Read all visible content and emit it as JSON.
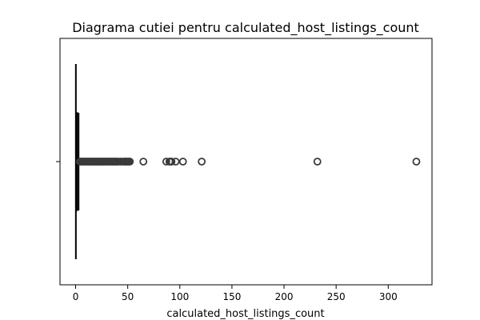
{
  "chart_data": {
    "type": "box",
    "title": "Diagrama cutiei pentru calculated_host_listings_count",
    "xlabel": "calculated_host_listings_count",
    "ylabel": "",
    "orientation": "horizontal",
    "xlim": [
      -15,
      342
    ],
    "xticks": [
      0,
      50,
      100,
      150,
      200,
      250,
      300
    ],
    "xtick_labels": [
      "0",
      "50",
      "100",
      "150",
      "200",
      "250",
      "300"
    ],
    "grid": false,
    "legend": "none",
    "box": {
      "min": 1,
      "q1": 1,
      "median": 1,
      "q3": 2,
      "whisker_high": 3
    },
    "outliers": [
      4,
      5,
      6,
      7,
      8,
      9,
      10,
      11,
      12,
      13,
      14,
      15,
      16,
      17,
      18,
      19,
      20,
      21,
      22,
      23,
      24,
      25,
      26,
      27,
      28,
      29,
      30,
      31,
      32,
      33,
      34,
      35,
      36,
      37,
      38,
      39,
      40,
      41,
      43,
      44,
      46,
      47,
      48,
      49,
      50,
      51,
      52,
      65,
      87,
      90,
      91,
      92,
      96,
      103,
      121,
      232,
      327
    ],
    "colors": {
      "box_fill": "#3b72b0",
      "line": "#000000",
      "outlier_edge": "#3a3a3a"
    }
  }
}
